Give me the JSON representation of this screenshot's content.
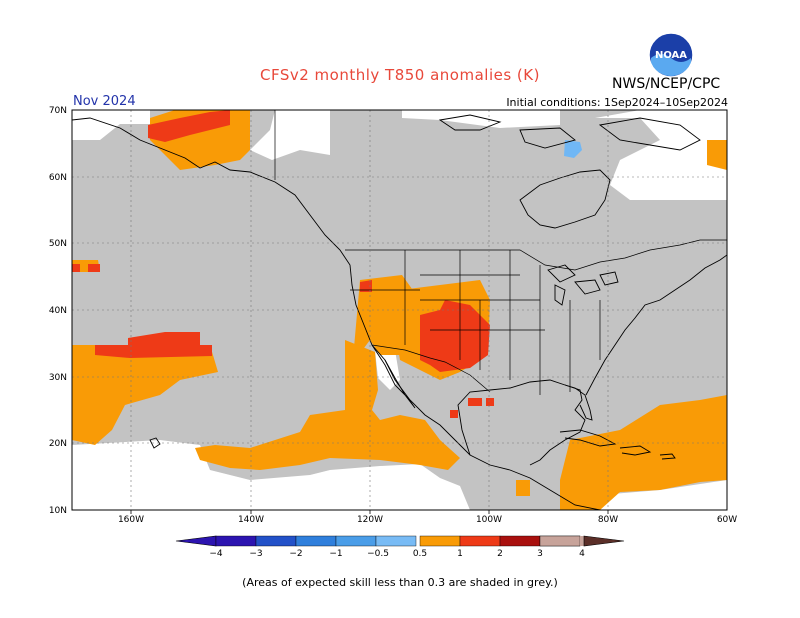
{
  "title": "CFSv2 monthly T850 anomalies (K)",
  "agency": "NWS/NCEP/CPC",
  "logo_text": "NOAA",
  "forecast_month": "Nov 2024",
  "initial_conditions": "Initial conditions: 1Sep2024–10Sep2024",
  "footnote": "(Areas of expected skill less than 0.3 are shaded in grey.)",
  "map": {
    "lon_range": [
      -170,
      -60
    ],
    "lat_range": [
      10,
      70
    ],
    "lat_labels": [
      "10N",
      "20N",
      "30N",
      "40N",
      "50N",
      "60N",
      "70N"
    ],
    "lon_labels": [
      "160W",
      "140W",
      "120W",
      "100W",
      "80W",
      "60W"
    ],
    "colors": {
      "low_skill_grey": "#c3c3c3",
      "land_outline": "#000000",
      "warm_0_5_1": "#f99b06",
      "warm_1_2": "#ee3a17",
      "cold_neg_0_5_neg_1": "#70b7f5"
    }
  },
  "legend": {
    "labels": [
      "−4",
      "−3",
      "−2",
      "−1",
      "−0.5",
      "0.5",
      "1",
      "2",
      "3",
      "4"
    ],
    "colors": [
      "#2c14b0",
      "#2251c8",
      "#2f7fdc",
      "#4a9de8",
      "#78bbf5",
      "#ffffff",
      "#f99b06",
      "#ee3a17",
      "#a9100e",
      "#8a1005",
      "#c7a39a",
      "#5b2f28"
    ]
  }
}
